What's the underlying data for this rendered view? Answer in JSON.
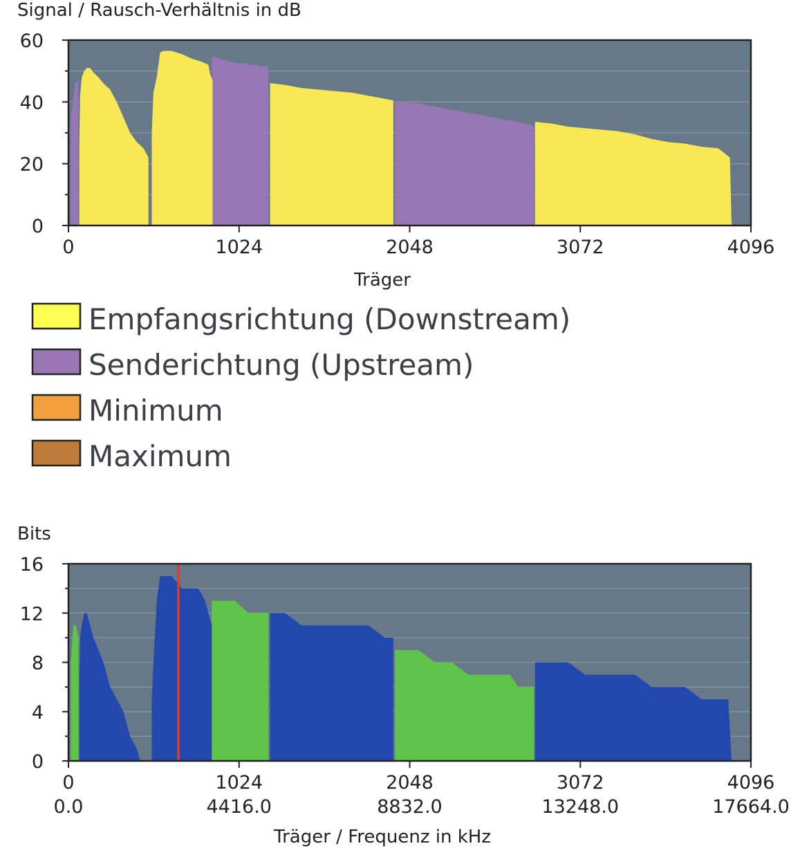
{
  "chart_data": [
    {
      "type": "area",
      "title": "",
      "ylabel": "Signal / Rausch-Verhältnis in dB",
      "xlabel": "Träger",
      "xlim": [
        0,
        4096
      ],
      "ylim": [
        0,
        60
      ],
      "xticks": [
        "0",
        "1024",
        "2048",
        "3072",
        "4096"
      ],
      "yticks": [
        "0",
        "20",
        "40",
        "60"
      ],
      "background": "#677889",
      "series": [
        {
          "name": "Upstream",
          "color": "#9676b5",
          "segments": [
            {
              "x": [
                14,
                40,
                60
              ],
              "y": [
                35,
                46,
                47
              ]
            },
            {
              "x": [
                860,
                870,
                900,
                940,
                980,
                1020,
                1060,
                1100,
                1130,
                1150,
                1200
              ],
              "y": [
                54,
                55,
                54,
                53.5,
                53,
                52.5,
                52.5,
                52,
                52,
                51.5,
                51.5
              ]
            },
            {
              "x": [
                1960,
                2000,
                2100,
                2200,
                2300,
                2400,
                2500,
                2600,
                2700,
                2780,
                2795
              ],
              "y": [
                40,
                40,
                39.5,
                38.5,
                37.5,
                36.5,
                35.5,
                34.5,
                33.5,
                32.5,
                32
              ]
            }
          ]
        },
        {
          "name": "Downstream",
          "color": "#f9e856",
          "segments": [
            {
              "x": [
                65,
                70,
                80,
                95,
                110,
                130,
                150,
                180,
                210,
                250,
                290,
                330,
                370,
                410,
                450,
                480
              ],
              "y": [
                25,
                42,
                48,
                50,
                51,
                51,
                49.5,
                48,
                46,
                44,
                40,
                35,
                30,
                27,
                25,
                22
              ]
            },
            {
              "x": [
                500,
                510,
                530,
                550,
                570,
                620,
                680,
                740,
                800,
                840,
                850,
                865
              ],
              "y": [
                30,
                43,
                48,
                56,
                56.5,
                56.5,
                55.5,
                54,
                53,
                52,
                49,
                47
              ]
            },
            {
              "x": [
                1210,
                1220,
                1300,
                1400,
                1500,
                1600,
                1700,
                1800,
                1900,
                1950
              ],
              "y": [
                46,
                46,
                45.5,
                44.5,
                44,
                43.5,
                43,
                42,
                41,
                40.5
              ]
            },
            {
              "x": [
                2800,
                2810,
                2900,
                3000,
                3100,
                3200,
                3300,
                3400,
                3500,
                3600,
                3700,
                3800,
                3900,
                3970,
                3980
              ],
              "y": [
                33.5,
                33.5,
                33,
                32,
                31.5,
                31,
                30.5,
                29.5,
                28,
                27,
                26.5,
                25.5,
                25,
                22,
                0
              ]
            }
          ]
        }
      ]
    },
    {
      "type": "area",
      "title": "",
      "ylabel": "Bits",
      "xlabel": "Träger / Frequenz in kHz",
      "xlim": [
        0,
        4096
      ],
      "ylim": [
        0,
        16
      ],
      "xticks": [
        "0",
        "1024",
        "2048",
        "3072",
        "4096"
      ],
      "xticks_secondary": [
        "0.0",
        "4416.0",
        "8832.0",
        "13248.0",
        "17664.0"
      ],
      "yticks": [
        "0",
        "4",
        "8",
        "12",
        "16"
      ],
      "background": "#677889",
      "marker": {
        "x": 660,
        "color": "#e03a2e"
      },
      "series": [
        {
          "name": "Upstream",
          "color": "#5ec44a",
          "segments": [
            {
              "x": [
                14,
                30,
                45,
                60
              ],
              "y": [
                8,
                11,
                11,
                10
              ]
            },
            {
              "x": [
                860,
                870,
                1000,
                1080,
                1100,
                1200
              ],
              "y": [
                13,
                13,
                13,
                12,
                12,
                12
              ]
            },
            {
              "x": [
                1960,
                2000,
                2100,
                2200,
                2300,
                2400,
                2500,
                2600,
                2650,
                2700,
                2795
              ],
              "y": [
                9,
                9,
                9,
                8,
                8,
                7,
                7,
                7,
                7,
                6,
                6
              ]
            }
          ]
        },
        {
          "name": "Downstream",
          "color": "#2248ae",
          "segments": [
            {
              "x": [
                65,
                70,
                80,
                95,
                110,
                130,
                150,
                180,
                210,
                250,
                290,
                330,
                370,
                410,
                430
              ],
              "y": [
                6,
                10,
                11,
                12,
                12,
                11,
                10,
                9,
                8,
                6,
                5,
                4,
                2,
                1,
                0
              ]
            },
            {
              "x": [
                500,
                510,
                530,
                550,
                580,
                620,
                680,
                720,
                780,
                820,
                840,
                860
              ],
              "y": [
                5,
                8,
                13,
                15,
                15,
                15,
                14,
                14,
                14,
                13,
                12,
                11
              ]
            },
            {
              "x": [
                1210,
                1220,
                1300,
                1400,
                1500,
                1600,
                1700,
                1800,
                1900,
                1950
              ],
              "y": [
                12,
                12,
                12,
                11,
                11,
                11,
                11,
                11,
                10,
                10
              ]
            },
            {
              "x": [
                2800,
                2810,
                2900,
                3000,
                3100,
                3200,
                3300,
                3400,
                3500,
                3600,
                3700,
                3800,
                3900,
                3960,
                3980
              ],
              "y": [
                8,
                8,
                8,
                8,
                7,
                7,
                7,
                7,
                6,
                6,
                6,
                5,
                5,
                5,
                0
              ]
            }
          ]
        }
      ]
    }
  ],
  "legend": [
    {
      "label": "Empfangsrichtung (Downstream)",
      "color": "#fdfd52"
    },
    {
      "label": "Senderichtung (Upstream)",
      "color": "#9a76b5"
    },
    {
      "label": "Minimum",
      "color": "#f2a03e"
    },
    {
      "label": "Maximum",
      "color": "#bf7b39"
    }
  ]
}
